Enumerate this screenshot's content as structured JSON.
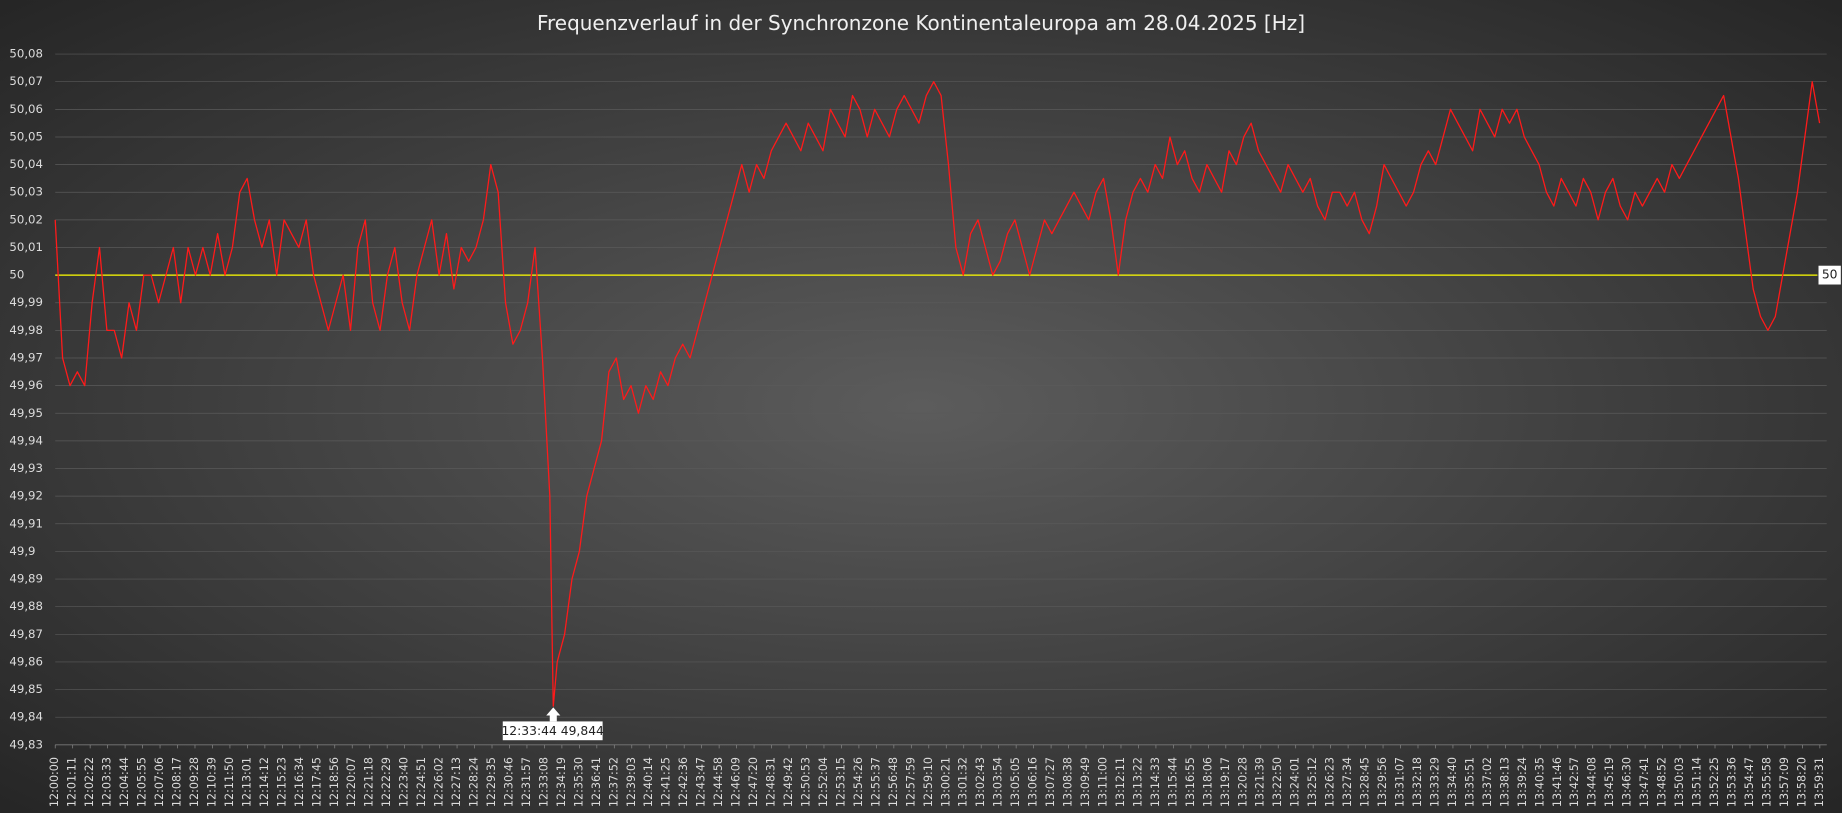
{
  "chart_data": {
    "type": "line",
    "title": "Frequenzverlauf  in der Synchronzone  Kontinentaleuropa  am 28.04.2025  [Hz]",
    "x": [
      "12:00:00",
      "12:00:30",
      "12:01:00",
      "12:01:30",
      "12:02:00",
      "12:02:30",
      "12:03:00",
      "12:03:30",
      "12:04:00",
      "12:04:30",
      "12:05:00",
      "12:05:30",
      "12:06:00",
      "12:06:30",
      "12:07:00",
      "12:07:30",
      "12:08:00",
      "12:08:30",
      "12:09:00",
      "12:09:30",
      "12:10:00",
      "12:10:30",
      "12:11:00",
      "12:11:30",
      "12:12:00",
      "12:12:30",
      "12:13:00",
      "12:13:30",
      "12:14:00",
      "12:14:30",
      "12:15:00",
      "12:15:30",
      "12:16:00",
      "12:16:30",
      "12:17:00",
      "12:17:30",
      "12:18:00",
      "12:18:30",
      "12:19:00",
      "12:19:30",
      "12:20:00",
      "12:20:30",
      "12:21:00",
      "12:21:30",
      "12:22:00",
      "12:22:30",
      "12:23:00",
      "12:23:30",
      "12:24:00",
      "12:24:30",
      "12:25:00",
      "12:25:30",
      "12:26:00",
      "12:26:30",
      "12:27:00",
      "12:27:30",
      "12:28:00",
      "12:28:30",
      "12:29:00",
      "12:29:30",
      "12:30:00",
      "12:30:30",
      "12:31:00",
      "12:31:30",
      "12:32:00",
      "12:32:30",
      "12:33:00",
      "12:33:30",
      "12:33:44",
      "12:34:00",
      "12:34:30",
      "12:35:00",
      "12:35:30",
      "12:36:00",
      "12:36:30",
      "12:37:00",
      "12:37:30",
      "12:38:00",
      "12:38:30",
      "12:39:00",
      "12:39:30",
      "12:40:00",
      "12:40:30",
      "12:41:00",
      "12:41:30",
      "12:42:00",
      "12:42:30",
      "12:43:00",
      "12:43:30",
      "12:44:00",
      "12:44:30",
      "12:45:00",
      "12:45:30",
      "12:46:00",
      "12:46:30",
      "12:47:00",
      "12:47:30",
      "12:48:00",
      "12:48:30",
      "12:49:00",
      "12:49:30",
      "12:50:00",
      "12:50:30",
      "12:51:00",
      "12:51:30",
      "12:52:00",
      "12:52:30",
      "12:53:00",
      "12:53:30",
      "12:54:00",
      "12:54:30",
      "12:55:00",
      "12:55:30",
      "12:56:00",
      "12:56:30",
      "12:57:00",
      "12:57:30",
      "12:58:00",
      "12:58:30",
      "12:59:00",
      "12:59:30",
      "13:00:00",
      "13:00:30",
      "13:01:00",
      "13:01:30",
      "13:02:00",
      "13:02:30",
      "13:03:00",
      "13:03:30",
      "13:04:00",
      "13:04:30",
      "13:05:00",
      "13:05:30",
      "13:06:00",
      "13:06:30",
      "13:07:00",
      "13:07:30",
      "13:08:00",
      "13:08:30",
      "13:09:00",
      "13:09:30",
      "13:10:00",
      "13:10:30",
      "13:11:00",
      "13:11:30",
      "13:12:00",
      "13:12:30",
      "13:13:00",
      "13:13:30",
      "13:14:00",
      "13:14:30",
      "13:15:00",
      "13:15:30",
      "13:16:00",
      "13:16:30",
      "13:17:00",
      "13:17:30",
      "13:18:00",
      "13:18:30",
      "13:19:00",
      "13:19:30",
      "13:20:00",
      "13:20:30",
      "13:21:00",
      "13:21:30",
      "13:22:00",
      "13:22:30",
      "13:23:00",
      "13:23:30",
      "13:24:00",
      "13:24:30",
      "13:25:00",
      "13:25:30",
      "13:26:00",
      "13:26:30",
      "13:27:00",
      "13:27:30",
      "13:28:00",
      "13:28:30",
      "13:29:00",
      "13:29:30",
      "13:30:00",
      "13:30:30",
      "13:31:00",
      "13:31:30",
      "13:32:00",
      "13:32:30",
      "13:33:00",
      "13:33:30",
      "13:34:00",
      "13:34:30",
      "13:35:00",
      "13:35:30",
      "13:36:00",
      "13:36:30",
      "13:37:00",
      "13:37:30",
      "13:38:00",
      "13:38:30",
      "13:39:00",
      "13:39:30",
      "13:40:00",
      "13:40:30",
      "13:41:00",
      "13:41:30",
      "13:42:00",
      "13:42:30",
      "13:43:00",
      "13:43:30",
      "13:44:00",
      "13:44:30",
      "13:45:00",
      "13:45:30",
      "13:46:00",
      "13:46:30",
      "13:47:00",
      "13:47:30",
      "13:48:00",
      "13:48:30",
      "13:49:00",
      "13:49:30",
      "13:50:00",
      "13:50:30",
      "13:51:00",
      "13:51:30",
      "13:52:00",
      "13:52:30",
      "13:53:00",
      "13:53:30",
      "13:54:00",
      "13:54:30",
      "13:55:00",
      "13:55:30",
      "13:56:00",
      "13:56:30",
      "13:57:00",
      "13:57:30",
      "13:58:00",
      "13:58:30",
      "13:59:00",
      "13:59:30"
    ],
    "series": [
      {
        "color": "#ff1a1a",
        "values": [
          50.02,
          49.97,
          49.96,
          49.965,
          49.96,
          49.99,
          50.01,
          49.98,
          49.98,
          49.97,
          49.99,
          49.98,
          50.0,
          50.0,
          49.99,
          50.0,
          50.01,
          49.99,
          50.01,
          50.0,
          50.01,
          50.0,
          50.015,
          50.0,
          50.01,
          50.03,
          50.035,
          50.02,
          50.01,
          50.02,
          50.0,
          50.02,
          50.015,
          50.01,
          50.02,
          50.0,
          49.99,
          49.98,
          49.99,
          50.0,
          49.98,
          50.01,
          50.02,
          49.99,
          49.98,
          50.0,
          50.01,
          49.99,
          49.98,
          50.0,
          50.01,
          50.02,
          50.0,
          50.015,
          49.995,
          50.01,
          50.005,
          50.01,
          50.02,
          50.04,
          50.03,
          49.99,
          49.975,
          49.98,
          49.99,
          50.01,
          49.97,
          49.92,
          49.844,
          49.86,
          49.87,
          49.89,
          49.9,
          49.92,
          49.93,
          49.94,
          49.965,
          49.97,
          49.955,
          49.96,
          49.95,
          49.96,
          49.955,
          49.965,
          49.96,
          49.97,
          49.975,
          49.97,
          49.98,
          49.99,
          50.0,
          50.01,
          50.02,
          50.03,
          50.04,
          50.03,
          50.04,
          50.035,
          50.045,
          50.05,
          50.055,
          50.05,
          50.045,
          50.055,
          50.05,
          50.045,
          50.06,
          50.055,
          50.05,
          50.065,
          50.06,
          50.05,
          50.06,
          50.055,
          50.05,
          50.06,
          50.065,
          50.06,
          50.055,
          50.065,
          50.07,
          50.065,
          50.04,
          50.01,
          50.0,
          50.015,
          50.02,
          50.01,
          50.0,
          50.005,
          50.015,
          50.02,
          50.01,
          50.0,
          50.01,
          50.02,
          50.015,
          50.02,
          50.025,
          50.03,
          50.025,
          50.02,
          50.03,
          50.035,
          50.02,
          50.0,
          50.02,
          50.03,
          50.035,
          50.03,
          50.04,
          50.035,
          50.05,
          50.04,
          50.045,
          50.035,
          50.03,
          50.04,
          50.035,
          50.03,
          50.045,
          50.04,
          50.05,
          50.055,
          50.045,
          50.04,
          50.035,
          50.03,
          50.04,
          50.035,
          50.03,
          50.035,
          50.025,
          50.02,
          50.03,
          50.03,
          50.025,
          50.03,
          50.02,
          50.015,
          50.025,
          50.04,
          50.035,
          50.03,
          50.025,
          50.03,
          50.04,
          50.045,
          50.04,
          50.05,
          50.06,
          50.055,
          50.05,
          50.045,
          50.06,
          50.055,
          50.05,
          50.06,
          50.055,
          50.06,
          50.05,
          50.045,
          50.04,
          50.03,
          50.025,
          50.035,
          50.03,
          50.025,
          50.035,
          50.03,
          50.02,
          50.03,
          50.035,
          50.025,
          50.02,
          50.03,
          50.025,
          50.03,
          50.035,
          50.03,
          50.04,
          50.035,
          50.04,
          50.045,
          50.05,
          50.055,
          50.06,
          50.065,
          50.05,
          50.035,
          50.015,
          49.995,
          49.985,
          49.98,
          49.985,
          50.0,
          50.015,
          50.03,
          50.05,
          50.07,
          50.055
        ]
      }
    ],
    "xlim": [
      "12:00:00",
      "13:59:59"
    ],
    "xticks": [
      "12:00:00",
      "12:01:11",
      "12:02:22",
      "12:03:33",
      "12:04:44",
      "12:05:55",
      "12:07:06",
      "12:08:17",
      "12:09:28",
      "12:10:39",
      "12:11:50",
      "12:13:01",
      "12:14:12",
      "12:15:23",
      "12:16:34",
      "12:17:45",
      "12:18:56",
      "12:20:07",
      "12:21:18",
      "12:22:29",
      "12:23:40",
      "12:24:51",
      "12:26:02",
      "12:27:13",
      "12:28:24",
      "12:29:35",
      "12:30:46",
      "12:31:57",
      "12:33:08",
      "12:34:19",
      "12:35:30",
      "12:36:41",
      "12:37:52",
      "12:39:03",
      "12:40:14",
      "12:41:25",
      "12:42:36",
      "12:43:47",
      "12:44:58",
      "12:46:09",
      "12:47:20",
      "12:48:31",
      "12:49:42",
      "12:50:53",
      "12:52:04",
      "12:53:15",
      "12:54:26",
      "12:55:37",
      "12:56:48",
      "12:57:59",
      "12:59:10",
      "13:00:21",
      "13:01:32",
      "13:02:43",
      "13:03:54",
      "13:05:05",
      "13:06:16",
      "13:07:27",
      "13:08:38",
      "13:09:49",
      "13:11:00",
      "13:12:11",
      "13:13:22",
      "13:14:33",
      "13:15:44",
      "13:16:55",
      "13:18:06",
      "13:19:17",
      "13:20:28",
      "13:21:39",
      "13:22:50",
      "13:24:01",
      "13:25:12",
      "13:26:23",
      "13:27:34",
      "13:28:45",
      "13:29:56",
      "13:31:07",
      "13:32:18",
      "13:33:29",
      "13:34:40",
      "13:35:51",
      "13:37:02",
      "13:38:13",
      "13:39:24",
      "13:40:35",
      "13:41:46",
      "13:42:57",
      "13:44:08",
      "13:45:19",
      "13:46:30",
      "13:47:41",
      "13:48:52",
      "13:50:03",
      "13:51:14",
      "13:52:25",
      "13:53:36",
      "13:54:47",
      "13:55:58",
      "13:57:09",
      "13:58:20",
      "13:59:31"
    ],
    "ylim": [
      49.83,
      50.08
    ],
    "yticks": [
      {
        "value": 49.83,
        "label": "49,83"
      },
      {
        "value": 49.84,
        "label": "49,84"
      },
      {
        "value": 49.85,
        "label": "49,85"
      },
      {
        "value": 49.86,
        "label": "49,86"
      },
      {
        "value": 49.87,
        "label": "49,87"
      },
      {
        "value": 49.88,
        "label": "49,88"
      },
      {
        "value": 49.89,
        "label": "49,89"
      },
      {
        "value": 49.9,
        "label": "49,9"
      },
      {
        "value": 49.91,
        "label": "49,91"
      },
      {
        "value": 49.92,
        "label": "49,92"
      },
      {
        "value": 49.93,
        "label": "49,93"
      },
      {
        "value": 49.94,
        "label": "49,94"
      },
      {
        "value": 49.95,
        "label": "49,95"
      },
      {
        "value": 49.96,
        "label": "49,96"
      },
      {
        "value": 49.97,
        "label": "49,97"
      },
      {
        "value": 49.98,
        "label": "49,98"
      },
      {
        "value": 49.99,
        "label": "49,99"
      },
      50,
      {
        "value": 50.01,
        "label": "50,01"
      },
      {
        "value": 50.02,
        "label": "50,02"
      },
      {
        "value": 50.03,
        "label": "50,03"
      },
      {
        "value": 50.04,
        "label": "50,04"
      },
      {
        "value": 50.05,
        "label": "50,05"
      },
      {
        "value": 50.06,
        "label": "50,06"
      },
      {
        "value": 50.07,
        "label": "50,07"
      },
      {
        "value": 50.08,
        "label": "50,08"
      }
    ],
    "grid": true,
    "reference_line": {
      "value": 50,
      "color": "#ffff00"
    },
    "annotation": {
      "x": "12:33:44",
      "value": 49.844,
      "label": "12:33:44 49,844"
    }
  }
}
